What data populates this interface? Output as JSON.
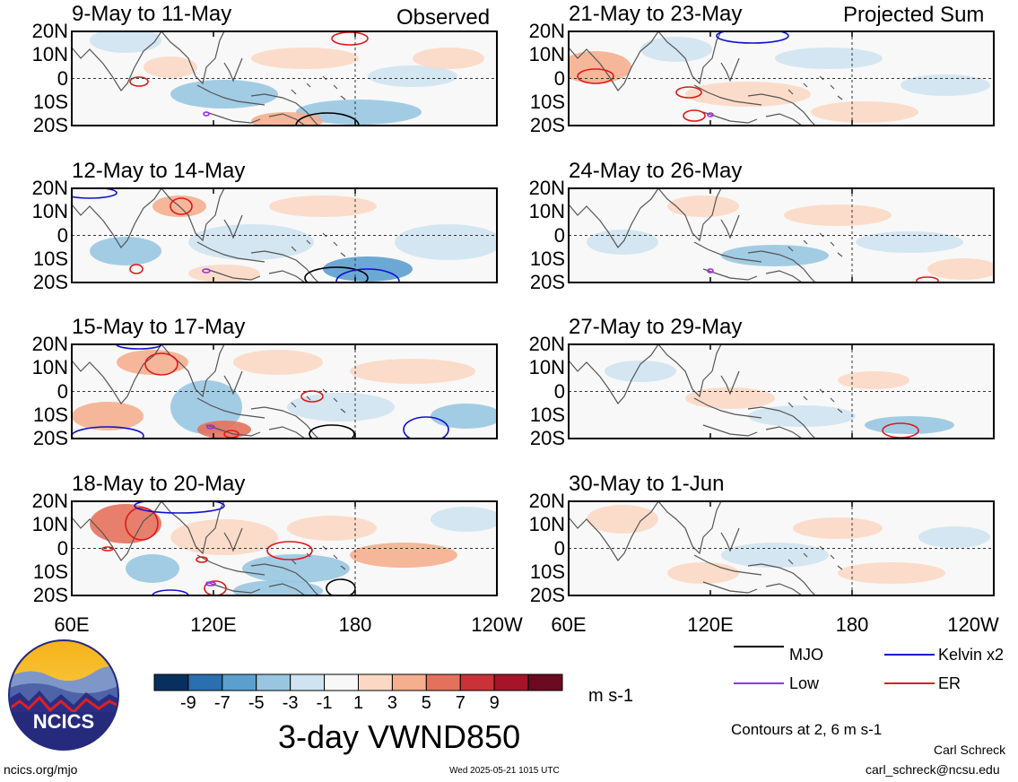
{
  "headers": {
    "left": "Observed",
    "right": "Projected Sum"
  },
  "panels": [
    {
      "id": "p1",
      "title": "9-May to 11-May",
      "col": 0,
      "row": 0
    },
    {
      "id": "p2",
      "title": "12-May to 14-May",
      "col": 0,
      "row": 1
    },
    {
      "id": "p3",
      "title": "15-May to 17-May",
      "col": 0,
      "row": 2
    },
    {
      "id": "p4",
      "title": "18-May to 20-May",
      "col": 0,
      "row": 3
    },
    {
      "id": "p5",
      "title": "21-May to 23-May",
      "col": 1,
      "row": 0
    },
    {
      "id": "p6",
      "title": "24-May to 26-May",
      "col": 1,
      "row": 1
    },
    {
      "id": "p7",
      "title": "27-May to 29-May",
      "col": 1,
      "row": 2
    },
    {
      "id": "p8",
      "title": "30-May to 1-Jun",
      "col": 1,
      "row": 3
    }
  ],
  "lat_ticks": [
    "20N",
    "10N",
    "0",
    "10S",
    "20S"
  ],
  "lon_ticks": [
    "60E",
    "120E",
    "180",
    "120W"
  ],
  "colorbar": {
    "colors": [
      "#08305e",
      "#2a6fb0",
      "#5b9fcf",
      "#98c6e1",
      "#cfe3f0",
      "#f8f8f8",
      "#fbd8c4",
      "#f5ae8e",
      "#e4715c",
      "#c93236",
      "#a51529",
      "#6b0a20"
    ],
    "labels": [
      "-9",
      "-7",
      "-5",
      "-3",
      "-1",
      "1",
      "3",
      "5",
      "7",
      "9"
    ],
    "units": "m s-1",
    "field_title": "3-day VWND850"
  },
  "legend": [
    {
      "label": "MJO",
      "color": "#000000"
    },
    {
      "label": "Kelvin x2",
      "color": "#1010d0"
    },
    {
      "label": "Low",
      "color": "#9b30e0"
    },
    {
      "label": "ER",
      "color": "#e01818"
    }
  ],
  "contours_note": "Contours at 2, 6 m s-1",
  "logo_text": "NCICS",
  "footer": {
    "website": "ncics.org/mjo",
    "timestamp": "Wed 2025-05-21 1015 UTC",
    "author": "Carl Schreck",
    "email": "carl_schreck@ncsu.edu"
  }
}
